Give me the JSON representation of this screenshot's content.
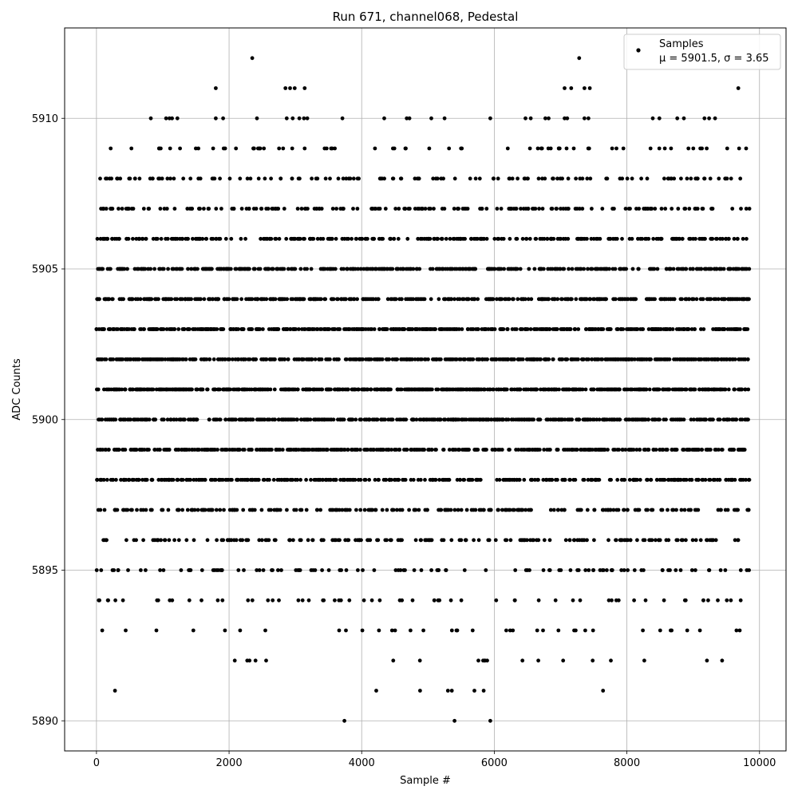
{
  "chart_data": {
    "type": "scatter",
    "title": "Run 671, channel068, Pedestal",
    "xlabel": "Sample #",
    "ylabel": "ADC Counts",
    "xlim": [
      -480,
      10400
    ],
    "ylim": [
      5889,
      5913
    ],
    "xticks": [
      0,
      2000,
      4000,
      6000,
      8000,
      10000
    ],
    "yticks": [
      5890,
      5895,
      5900,
      5905,
      5910
    ],
    "xtick_labels": [
      "0",
      "2000",
      "4000",
      "6000",
      "8000",
      "10000"
    ],
    "ytick_labels": [
      "5890",
      "5895",
      "5900",
      "5905",
      "5910"
    ],
    "grid": true,
    "legend_position": "top-right",
    "series": [
      {
        "name": "Samples",
        "legend_stats": "μ = 5901.5, σ = 3.65",
        "color": "#000000",
        "marker": "circle",
        "sample_count": 10000,
        "mean": 5901.5,
        "stddev": 3.65,
        "points": [
          {
            "x": 280,
            "y": 5891
          },
          {
            "x": 4220,
            "y": 5891
          },
          {
            "x": 4880,
            "y": 5891
          },
          {
            "x": 5300,
            "y": 5891
          },
          {
            "x": 5360,
            "y": 5891
          },
          {
            "x": 5700,
            "y": 5891
          },
          {
            "x": 5840,
            "y": 5891
          },
          {
            "x": 7640,
            "y": 5891
          },
          {
            "x": 3740,
            "y": 5890
          },
          {
            "x": 5400,
            "y": 5890
          },
          {
            "x": 5940,
            "y": 5890
          },
          {
            "x": 2350,
            "y": 5912
          },
          {
            "x": 7280,
            "y": 5912
          },
          {
            "x": 1800,
            "y": 5911
          },
          {
            "x": 2850,
            "y": 5911
          },
          {
            "x": 2920,
            "y": 5911
          },
          {
            "x": 2990,
            "y": 5911
          },
          {
            "x": 3140,
            "y": 5911
          },
          {
            "x": 7060,
            "y": 5911
          },
          {
            "x": 7160,
            "y": 5911
          },
          {
            "x": 7360,
            "y": 5911
          },
          {
            "x": 7440,
            "y": 5911
          },
          {
            "x": 9680,
            "y": 5911
          },
          {
            "x": 820,
            "y": 5910
          },
          {
            "x": 1050,
            "y": 5910
          },
          {
            "x": 1100,
            "y": 5910
          },
          {
            "x": 1140,
            "y": 5910
          },
          {
            "x": 1220,
            "y": 5910
          },
          {
            "x": 1800,
            "y": 5910
          },
          {
            "x": 1910,
            "y": 5910
          },
          {
            "x": 2420,
            "y": 5910
          },
          {
            "x": 2870,
            "y": 5910
          },
          {
            "x": 2960,
            "y": 5910
          },
          {
            "x": 3060,
            "y": 5910
          },
          {
            "x": 3130,
            "y": 5910
          },
          {
            "x": 3180,
            "y": 5910
          },
          {
            "x": 3710,
            "y": 5910
          },
          {
            "x": 4340,
            "y": 5910
          },
          {
            "x": 4680,
            "y": 5910
          },
          {
            "x": 4720,
            "y": 5910
          },
          {
            "x": 5050,
            "y": 5910
          },
          {
            "x": 5250,
            "y": 5910
          },
          {
            "x": 5940,
            "y": 5910
          },
          {
            "x": 6470,
            "y": 5910
          },
          {
            "x": 6550,
            "y": 5910
          },
          {
            "x": 6770,
            "y": 5910
          },
          {
            "x": 6820,
            "y": 5910
          },
          {
            "x": 7060,
            "y": 5910
          },
          {
            "x": 7100,
            "y": 5910
          },
          {
            "x": 7360,
            "y": 5910
          },
          {
            "x": 7420,
            "y": 5910
          },
          {
            "x": 8390,
            "y": 5910
          },
          {
            "x": 8490,
            "y": 5910
          },
          {
            "x": 8760,
            "y": 5910
          },
          {
            "x": 8860,
            "y": 5910
          },
          {
            "x": 9170,
            "y": 5910
          },
          {
            "x": 9240,
            "y": 5910
          },
          {
            "x": 9330,
            "y": 5910
          }
        ]
      }
    ]
  }
}
